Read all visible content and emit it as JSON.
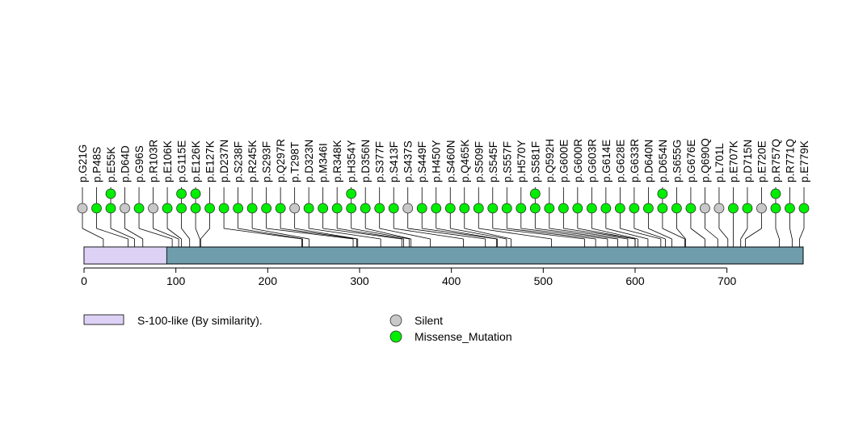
{
  "chart_data": {
    "type": "lollipop",
    "x_axis": {
      "min": 0,
      "max": 783,
      "ticks": [
        0,
        100,
        200,
        300,
        400,
        500,
        600,
        700
      ]
    },
    "protein_length": 783,
    "domains": [
      {
        "label": "S-100-like (By similarity).",
        "start": 1,
        "end": 90,
        "color": "#ddd1f5"
      }
    ],
    "mutation_types": {
      "Silent": "#c8c8c8",
      "Missense_Mutation": "#00ee00"
    },
    "legend": [
      {
        "label": "S-100-like (By similarity).",
        "kind": "domain",
        "color": "#ddd1f5"
      },
      {
        "label": "Silent",
        "kind": "mutation",
        "color": "#c8c8c8"
      },
      {
        "label": "Missense_Mutation",
        "kind": "mutation",
        "color": "#00ee00"
      }
    ],
    "mutations": [
      {
        "label": "p.G21G",
        "pos": 21,
        "type": "Silent",
        "count": 1
      },
      {
        "label": "p.P48S",
        "pos": 48,
        "type": "Missense_Mutation",
        "count": 1
      },
      {
        "label": "p.E55K",
        "pos": 55,
        "type": "Missense_Mutation",
        "count": 2
      },
      {
        "label": "p.D64D",
        "pos": 64,
        "type": "Silent",
        "count": 1
      },
      {
        "label": "p.G96S",
        "pos": 96,
        "type": "Missense_Mutation",
        "count": 1
      },
      {
        "label": "p.R103R",
        "pos": 103,
        "type": "Silent",
        "count": 1
      },
      {
        "label": "p.E106K",
        "pos": 106,
        "type": "Missense_Mutation",
        "count": 1
      },
      {
        "label": "p.G115E",
        "pos": 115,
        "type": "Missense_Mutation",
        "count": 2
      },
      {
        "label": "p.E126K",
        "pos": 126,
        "type": "Missense_Mutation",
        "count": 2
      },
      {
        "label": "p.E127K",
        "pos": 127,
        "type": "Missense_Mutation",
        "count": 1
      },
      {
        "label": "p.D237N",
        "pos": 237,
        "type": "Missense_Mutation",
        "count": 1
      },
      {
        "label": "p.S238F",
        "pos": 238,
        "type": "Missense_Mutation",
        "count": 1
      },
      {
        "label": "p.R245K",
        "pos": 245,
        "type": "Missense_Mutation",
        "count": 1
      },
      {
        "label": "p.S293F",
        "pos": 293,
        "type": "Missense_Mutation",
        "count": 1
      },
      {
        "label": "p.Q297R",
        "pos": 297,
        "type": "Missense_Mutation",
        "count": 1
      },
      {
        "label": "p.T298T",
        "pos": 298,
        "type": "Silent",
        "count": 1
      },
      {
        "label": "p.D323N",
        "pos": 323,
        "type": "Missense_Mutation",
        "count": 1
      },
      {
        "label": "p.M346I",
        "pos": 346,
        "type": "Missense_Mutation",
        "count": 1
      },
      {
        "label": "p.R348K",
        "pos": 348,
        "type": "Missense_Mutation",
        "count": 1
      },
      {
        "label": "p.H354Y",
        "pos": 354,
        "type": "Missense_Mutation",
        "count": 2
      },
      {
        "label": "p.D356N",
        "pos": 356,
        "type": "Missense_Mutation",
        "count": 1
      },
      {
        "label": "p.S377F",
        "pos": 377,
        "type": "Missense_Mutation",
        "count": 1
      },
      {
        "label": "p.S413F",
        "pos": 413,
        "type": "Missense_Mutation",
        "count": 1
      },
      {
        "label": "p.S437S",
        "pos": 437,
        "type": "Silent",
        "count": 1
      },
      {
        "label": "p.S449F",
        "pos": 449,
        "type": "Missense_Mutation",
        "count": 1
      },
      {
        "label": "p.H450Y",
        "pos": 450,
        "type": "Missense_Mutation",
        "count": 1
      },
      {
        "label": "p.S460N",
        "pos": 460,
        "type": "Missense_Mutation",
        "count": 1
      },
      {
        "label": "p.Q465K",
        "pos": 465,
        "type": "Missense_Mutation",
        "count": 1
      },
      {
        "label": "p.S509F",
        "pos": 509,
        "type": "Missense_Mutation",
        "count": 1
      },
      {
        "label": "p.S545F",
        "pos": 545,
        "type": "Missense_Mutation",
        "count": 1
      },
      {
        "label": "p.S557F",
        "pos": 557,
        "type": "Missense_Mutation",
        "count": 1
      },
      {
        "label": "p.H570Y",
        "pos": 570,
        "type": "Missense_Mutation",
        "count": 1
      },
      {
        "label": "p.S581F",
        "pos": 581,
        "type": "Missense_Mutation",
        "count": 2
      },
      {
        "label": "p.Q592H",
        "pos": 592,
        "type": "Missense_Mutation",
        "count": 1
      },
      {
        "label": "p.G600E",
        "pos": 600,
        "type": "Missense_Mutation",
        "count": 1
      },
      {
        "label": "p.G600R",
        "pos": 600,
        "type": "Missense_Mutation",
        "count": 1
      },
      {
        "label": "p.G603R",
        "pos": 603,
        "type": "Missense_Mutation",
        "count": 1
      },
      {
        "label": "p.G614E",
        "pos": 614,
        "type": "Missense_Mutation",
        "count": 1
      },
      {
        "label": "p.G628E",
        "pos": 628,
        "type": "Missense_Mutation",
        "count": 1
      },
      {
        "label": "p.G633R",
        "pos": 633,
        "type": "Missense_Mutation",
        "count": 1
      },
      {
        "label": "p.D640N",
        "pos": 640,
        "type": "Missense_Mutation",
        "count": 1
      },
      {
        "label": "p.D654N",
        "pos": 654,
        "type": "Missense_Mutation",
        "count": 2
      },
      {
        "label": "p.S655G",
        "pos": 655,
        "type": "Missense_Mutation",
        "count": 1
      },
      {
        "label": "p.G676E",
        "pos": 676,
        "type": "Missense_Mutation",
        "count": 1
      },
      {
        "label": "p.Q690Q",
        "pos": 690,
        "type": "Silent",
        "count": 1
      },
      {
        "label": "p.L701L",
        "pos": 701,
        "type": "Silent",
        "count": 1
      },
      {
        "label": "p.E707K",
        "pos": 707,
        "type": "Missense_Mutation",
        "count": 1
      },
      {
        "label": "p.D715N",
        "pos": 715,
        "type": "Missense_Mutation",
        "count": 1
      },
      {
        "label": "p.E720E",
        "pos": 720,
        "type": "Silent",
        "count": 1
      },
      {
        "label": "p.R757Q",
        "pos": 757,
        "type": "Missense_Mutation",
        "count": 2
      },
      {
        "label": "p.R771Q",
        "pos": 771,
        "type": "Missense_Mutation",
        "count": 1
      },
      {
        "label": "p.E779K",
        "pos": 779,
        "type": "Missense_Mutation",
        "count": 1
      }
    ]
  }
}
